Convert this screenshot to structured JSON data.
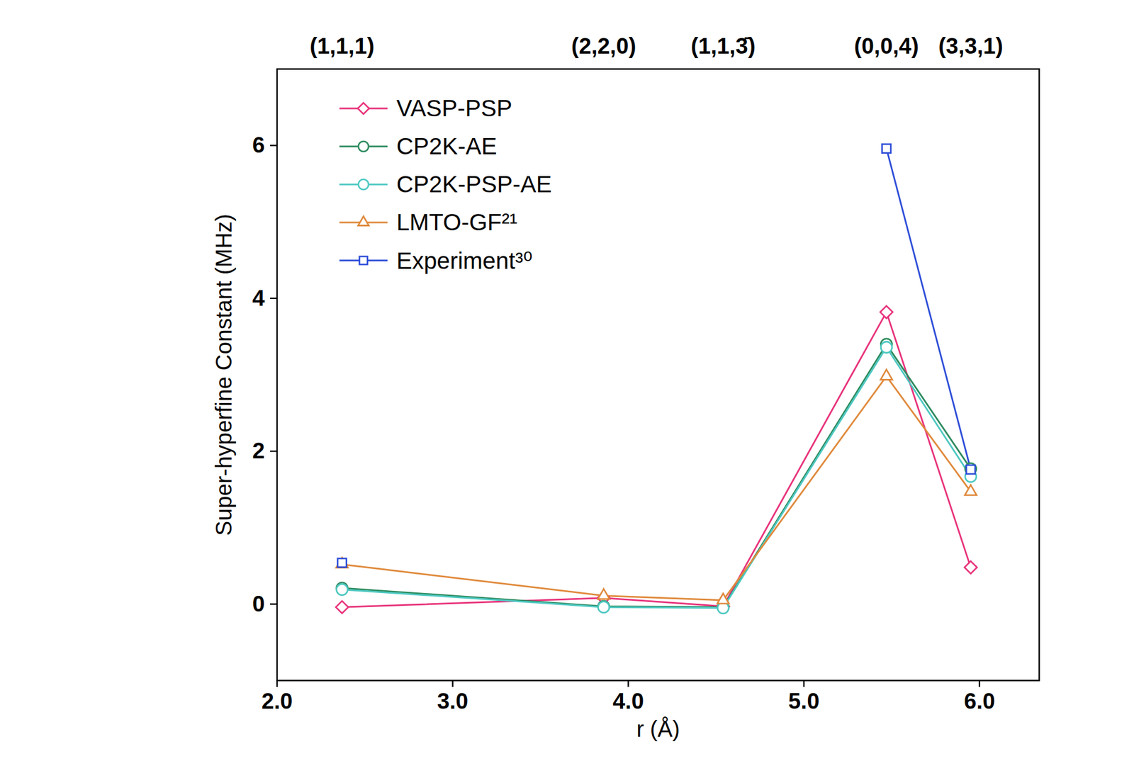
{
  "chart_data": {
    "type": "line",
    "x_label": "r (Å)",
    "y_label": "Super-hyperfine Constant (MHz)",
    "x": [
      2.37,
      3.86,
      4.54,
      5.47,
      5.95
    ],
    "series": [
      {
        "name": "VASP-PSP",
        "color": "#e8347c",
        "marker": "diamond",
        "values": [
          -0.04,
          0.08,
          -0.03,
          3.82,
          0.48
        ]
      },
      {
        "name": "CP2K-AE",
        "color": "#2e8b5f",
        "marker": "circle",
        "values": [
          0.21,
          -0.03,
          -0.04,
          3.4,
          1.77
        ]
      },
      {
        "name": "CP2K-PSP-AE",
        "color": "#4ec8c2",
        "marker": "circle",
        "values": [
          0.19,
          -0.04,
          -0.05,
          3.36,
          1.67
        ]
      },
      {
        "name": "LMTO-GF²¹",
        "color": "#e08a3c",
        "marker": "triangle",
        "values": [
          0.52,
          0.11,
          0.05,
          2.98,
          1.47
        ]
      },
      {
        "name": "Experiment³⁰",
        "color": "#2f4fd8",
        "marker": "square",
        "values": [
          0.54,
          null,
          null,
          5.96,
          1.76
        ]
      }
    ],
    "xlim": [
      2,
      6.34
    ],
    "xticks": [
      2,
      3,
      4,
      5,
      6
    ],
    "ylim": [
      -1,
      7
    ],
    "yticks": [
      0,
      2,
      4,
      6
    ],
    "x2ticks": [
      {
        "value": 2.37,
        "label": "(1,1,1)"
      },
      {
        "value": 3.86,
        "label": "(2,2,0)"
      },
      {
        "value": 4.54,
        "label": "(1,1,3̄)"
      },
      {
        "value": 5.47,
        "label": "(0,0,4)"
      },
      {
        "value": 5.95,
        "label": "(3,3,1)"
      }
    ],
    "legend": "upper left"
  }
}
